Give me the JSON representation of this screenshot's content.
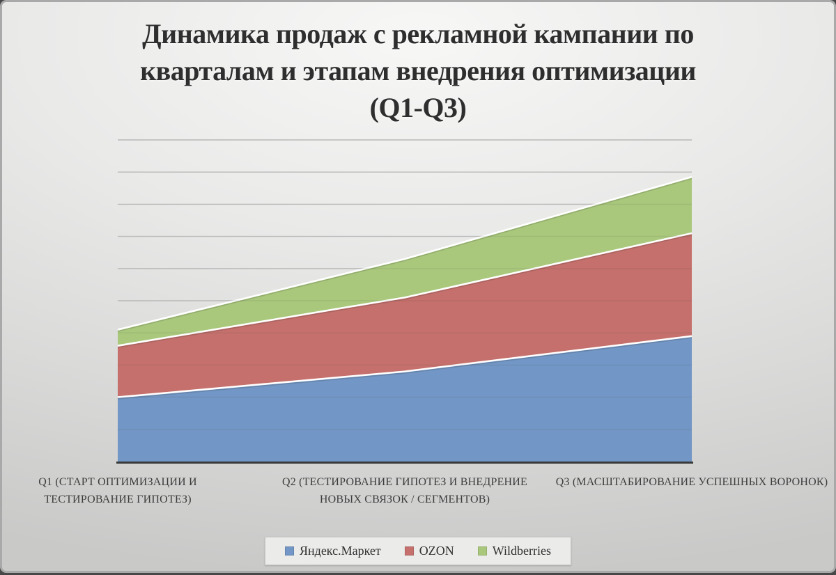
{
  "slide": {
    "title": "Динамика продаж с рекламной кампании по кварталам и этапам внедрения оптимизации (Q1-Q3)",
    "title_lines": [
      "Динамика продаж с рекламной кампании по",
      "кварталам и этапам внедрения оптимизации",
      "(Q1-Q3)"
    ]
  },
  "colors": {
    "background_center": "#f7f7f6",
    "background_edge": "#c9c9c8",
    "gridline": "#c7c7c6",
    "axis": "#3a3a3a",
    "title_text": "#2e2e2e",
    "label_text": "#3d3d3d",
    "legend_background": "#ebebea"
  },
  "chart_data": {
    "type": "area",
    "stacked": true,
    "title": "Динамика продаж с рекламной кампании по кварталам и этапам внедрения оптимизации (Q1-Q3)",
    "categories": [
      "Q1 (СТАРТ ОПТИМИЗАЦИИ И ТЕСТИРОВАНИЕ ГИПОТЕЗ)",
      "Q2 (ТЕСТИРОВАНИЕ ГИПОТЕЗ И ВНЕДРЕНИЕ НОВЫХ СВЯЗОК / СЕГМЕНТОВ)",
      "Q3 (МАСШТАБИРОВАНИЕ УСПЕШНЫХ ВОРОНОК)"
    ],
    "series": [
      {
        "name": "Яндекс.Маркет",
        "color": "#7296c5",
        "values": [
          2.0,
          2.8,
          3.9
        ]
      },
      {
        "name": "OZON",
        "color": "#c5706c",
        "values": [
          1.6,
          2.3,
          3.2
        ]
      },
      {
        "name": "Wildberries",
        "color": "#a9c87c",
        "values": [
          0.5,
          1.2,
          1.75
        ]
      }
    ],
    "xlabel": "",
    "ylabel": "",
    "ylim": [
      0,
      10
    ],
    "gridline_interval": 1,
    "y_axis_labels_visible": false,
    "y_unit": "unlabeled gridline units (estimated from grid)",
    "grid": true,
    "legend_position": "bottom"
  }
}
